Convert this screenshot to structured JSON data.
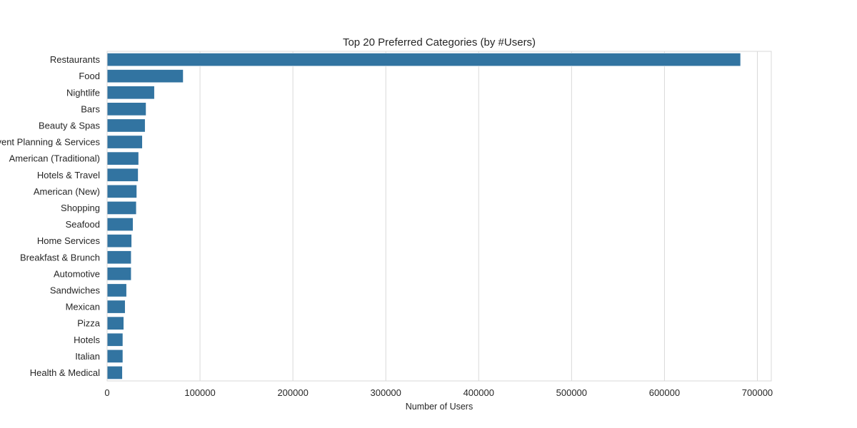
{
  "chart_data": {
    "type": "bar",
    "orientation": "horizontal",
    "title": "Top 20 Preferred Categories (by #Users)",
    "xlabel": "Number of Users",
    "ylabel": "",
    "xlim": [
      0,
      715000
    ],
    "x_ticks": [
      0,
      100000,
      200000,
      300000,
      400000,
      500000,
      600000,
      700000
    ],
    "grid": "vertical",
    "bar_color": "#3274a1",
    "categories": [
      "Restaurants",
      "Food",
      "Nightlife",
      "Bars",
      "Beauty & Spas",
      "Event Planning & Services",
      "American (Traditional)",
      "Hotels & Travel",
      "American (New)",
      "Shopping",
      "Seafood",
      "Home Services",
      "Breakfast & Brunch",
      "Automotive",
      "Sandwiches",
      "Mexican",
      "Pizza",
      "Hotels",
      "Italian",
      "Health & Medical"
    ],
    "values": [
      682000,
      82000,
      51000,
      42000,
      41000,
      38000,
      34000,
      33500,
      32000,
      31500,
      28000,
      26500,
      26000,
      26000,
      21000,
      19500,
      18000,
      17000,
      17000,
      16500
    ]
  }
}
